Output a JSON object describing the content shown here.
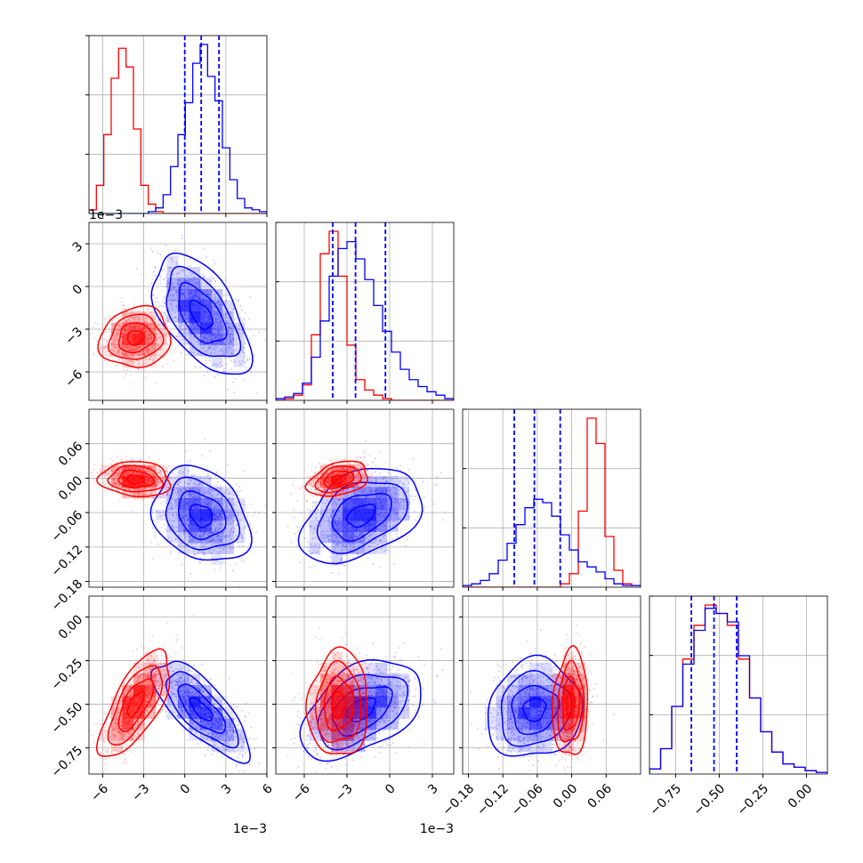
{
  "chart_data": {
    "type": "corner",
    "colors": {
      "red": "#ff0000",
      "blue": "#0000ff",
      "grid": "#b0b0b0"
    },
    "grid": true,
    "parameters": [
      {
        "id": "p1",
        "range": [
          -7,
          6
        ],
        "ticks": [
          -6,
          -3,
          0,
          3,
          6
        ],
        "tick_labels": [
          "−6",
          "−3",
          "0",
          "3",
          "6"
        ],
        "offset_label": "1e−3"
      },
      {
        "id": "p2",
        "range": [
          -8,
          4.5
        ],
        "ticks": [
          -6,
          -3,
          0,
          3
        ],
        "tick_labels": [
          "−6",
          "−3",
          "0",
          "3"
        ],
        "offset_label": "1e−3"
      },
      {
        "id": "p3",
        "range": [
          -0.19,
          0.12
        ],
        "ticks": [
          -0.18,
          -0.12,
          -0.06,
          0.0,
          0.06
        ],
        "tick_labels": [
          "−0.18",
          "−0.12",
          "−0.06",
          "0.00",
          "0.06"
        ],
        "offset_label": ""
      },
      {
        "id": "p4",
        "range": [
          -0.9,
          0.12
        ],
        "ticks": [
          -0.75,
          -0.5,
          -0.25,
          0.0
        ],
        "tick_labels": [
          "−0.75",
          "−0.50",
          "−0.25",
          "0.00"
        ],
        "offset_label": ""
      }
    ],
    "series": [
      {
        "name": "",
        "color": "#0000ff",
        "mean": [
          1.2,
          -2.0,
          -0.065,
          -0.53
        ],
        "sd": [
          1.5,
          1.8,
          0.035,
          0.12
        ],
        "corr": [
          [
            1,
            -0.55,
            -0.25,
            -0.75
          ],
          [
            -0.55,
            1,
            0.4,
            0.45
          ],
          [
            -0.25,
            0.4,
            1,
            0.1
          ],
          [
            -0.75,
            0.45,
            0.1,
            1
          ]
        ],
        "quantile_lines": [
          [
            0.0,
            1.2,
            2.5
          ],
          [
            -4.0,
            -2.4,
            -0.3
          ],
          [
            -0.1,
            -0.065,
            -0.02
          ],
          [
            -0.66,
            -0.53,
            -0.4
          ]
        ],
        "hist": [
          {
            "edges": [
              -7,
              6
            ],
            "counts": [
              0,
              0,
              0,
              0,
              0,
              0,
              0,
              0,
              1,
              3,
              10,
              25,
              42,
              59,
              80,
              90,
              73,
              60,
              35,
              18,
              8,
              3,
              2,
              1
            ]
          },
          {
            "edges": [
              -8,
              4.5
            ],
            "counts": [
              1,
              2,
              4,
              10,
              25,
              46,
              72,
              88,
              92,
              82,
              70,
              55,
              40,
              28,
              18,
              12,
              8,
              5,
              3,
              1
            ]
          },
          {
            "edges": [
              -0.19,
              0.12
            ],
            "counts": [
              1,
              2,
              4,
              8,
              16,
              26,
              37,
              47,
              52,
              50,
              42,
              31,
              22,
              15,
              12,
              9,
              5,
              2,
              1,
              1
            ]
          },
          {
            "edges": [
              -0.9,
              0.12
            ],
            "counts": [
              3,
              15,
              40,
              65,
              85,
              98,
              95,
              90,
              70,
              45,
              25,
              13,
              6,
              4,
              2,
              1
            ]
          }
        ]
      },
      {
        "name": "",
        "color": "#ff0000",
        "mean": [
          -3.6,
          -3.6,
          -0.002,
          -0.5
        ],
        "sd": [
          1.1,
          0.9,
          0.013,
          0.13
        ],
        "corr": [
          [
            1,
            0.1,
            -0.1,
            0.7
          ],
          [
            0.1,
            1,
            0.35,
            0.05
          ],
          [
            -0.1,
            0.35,
            1,
            0.1
          ],
          [
            0.7,
            0.05,
            0.1,
            1
          ]
        ],
        "quantile_lines": null,
        "hist": [
          {
            "edges": [
              -7,
              6
            ],
            "counts": [
              2,
              15,
              42,
              72,
              88,
              78,
              45,
              15,
              5,
              1,
              0,
              0,
              0,
              0,
              0,
              0,
              0,
              0,
              0,
              0,
              0,
              0,
              0,
              0
            ]
          },
          {
            "edges": [
              -8,
              4.5
            ],
            "counts": [
              0,
              1,
              3,
              9,
              38,
              85,
              98,
              72,
              32,
              12,
              6,
              3,
              1,
              0,
              0,
              0,
              0,
              0,
              0,
              0
            ]
          },
          {
            "edges": [
              -0.19,
              0.12
            ],
            "counts": [
              0,
              0,
              0,
              0,
              0,
              0,
              0,
              0,
              0,
              0,
              0,
              2,
              8,
              45,
              100,
              85,
              30,
              10,
              2,
              1
            ]
          },
          {
            "edges": [
              -0.9,
              0.12
            ],
            "counts": [
              3,
              15,
              40,
              68,
              88,
              100,
              95,
              88,
              68,
              45,
              25,
              13,
              6,
              4,
              2,
              1
            ]
          }
        ]
      }
    ]
  }
}
